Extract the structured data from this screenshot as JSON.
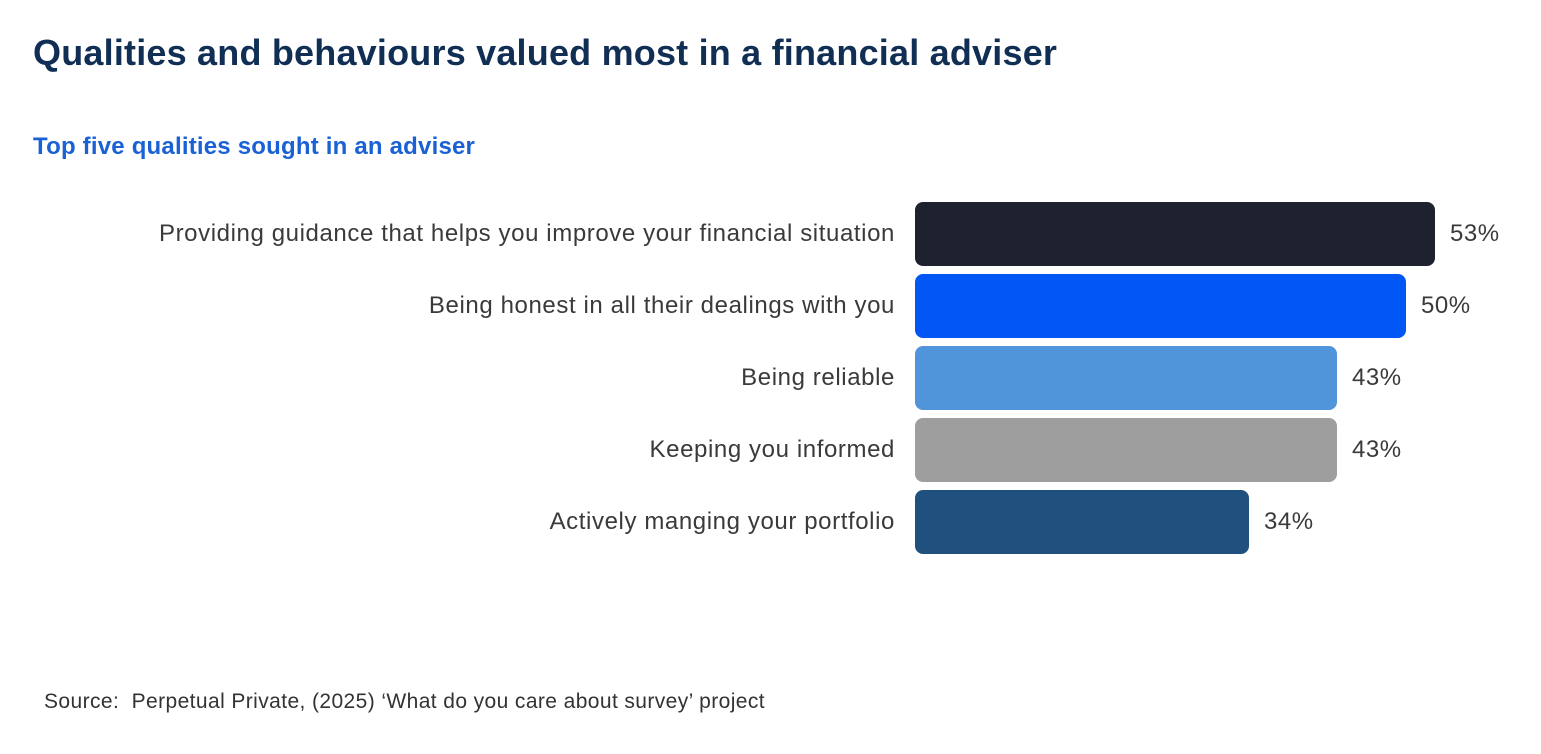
{
  "header": {
    "title": "Qualities and behaviours valued most in a financial adviser",
    "subtitle": "Top five qualities sought in an adviser"
  },
  "chart_data": {
    "type": "bar",
    "orientation": "horizontal",
    "title": "Qualities and behaviours valued most in a financial adviser",
    "subtitle": "Top five qualities sought in an adviser",
    "categories": [
      "Providing guidance that helps you improve your financial situation",
      "Being honest in all their dealings with you",
      "Being reliable",
      "Keeping you informed",
      "Actively manging your portfolio"
    ],
    "values": [
      53,
      50,
      43,
      43,
      34
    ],
    "data_labels": [
      "53%",
      "50%",
      "43%",
      "43%",
      "34%"
    ],
    "bar_colors": [
      "#1d222e",
      "#0156f5",
      "#5094d9",
      "#9d9e9d",
      "#20507e"
    ],
    "unit": "%",
    "xlim": [
      0,
      53
    ],
    "grid": false,
    "legend": false,
    "xlabel": "",
    "ylabel": ""
  },
  "footer": {
    "source": "Source:  Perpetual Private, (2025) ‘What do you care about survey’ project"
  },
  "colors": {
    "title_text": "#112e54",
    "subtitle_text": "#1961d4",
    "label_text": "#3a3a3a",
    "background": "#ffffff"
  }
}
